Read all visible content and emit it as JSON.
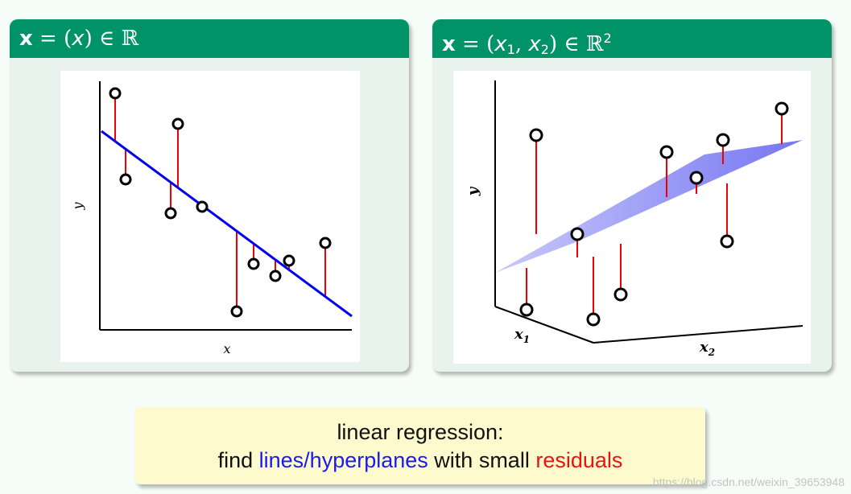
{
  "left_block": {
    "title_symbol": "x",
    "title_rest": " = (",
    "title_var": "x",
    "title_tail": ") ∈ ",
    "title_set": "ℝ",
    "ylabel": "y",
    "xlabel": "x"
  },
  "right_block": {
    "title_symbol": "x",
    "title_rest": " = (",
    "title_var1": "x",
    "title_sub1": "1",
    "title_sep": ", ",
    "title_var2": "x",
    "title_sub2": "2",
    "title_tail": ") ∈ ",
    "title_set": "ℝ",
    "title_power": "2",
    "ylabel": "y",
    "x1_var": "x",
    "x1_sub": "1",
    "x2_var": "x",
    "x2_sub": "2"
  },
  "note": {
    "line1": "linear regression:",
    "line2_prefix": "find ",
    "line2_blue": "lines/hyperplanes",
    "line2_middle": " with small ",
    "line2_red": "residuals"
  },
  "watermark": "https://blog.csdn.net/weixin_39653948",
  "colors": {
    "header_green": "#009367",
    "fit_line": "#0000ee",
    "residual": "#ee0000",
    "plane": "#8f8ff4",
    "note_bg": "#fdfbce"
  }
}
